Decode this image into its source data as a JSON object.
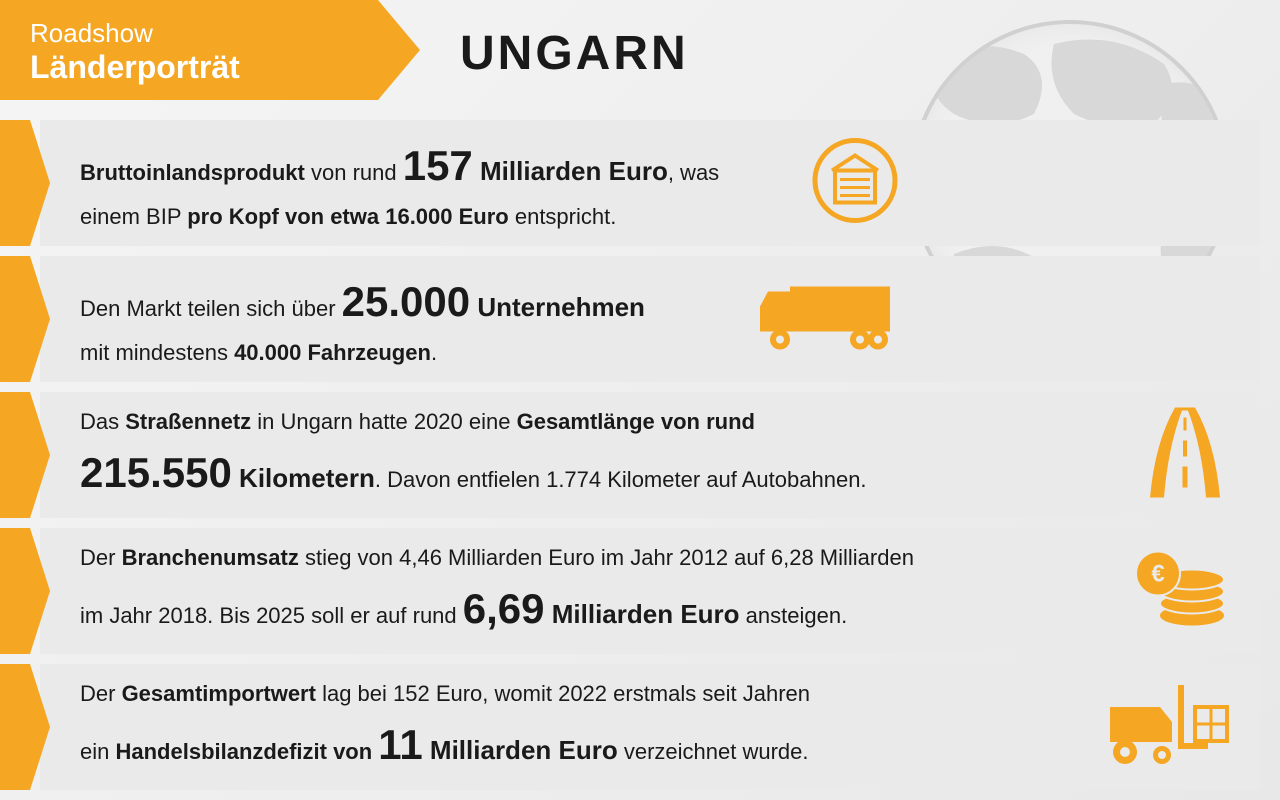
{
  "header": {
    "line1": "Roadshow",
    "line2": "Länderporträt",
    "country": "UNGARN"
  },
  "colors": {
    "accent": "#f5a623",
    "text": "#1a1a1a",
    "row_bg": "#eaeaea",
    "map_land": "#d8d8d8",
    "map_border": "#d0d0d0"
  },
  "rows": [
    {
      "icon": "warehouse",
      "parts": [
        {
          "t": "Bruttoinlandsprodukt",
          "cls": "bold"
        },
        {
          "t": " von rund "
        },
        {
          "t": "157",
          "cls": "big"
        },
        {
          "t": " Milliarden Euro",
          "cls": "mid"
        },
        {
          "t": ", was"
        },
        {
          "br": true
        },
        {
          "t": "einem BIP "
        },
        {
          "t": "pro Kopf von etwa 16.000 Euro",
          "cls": "bold"
        },
        {
          "t": " entspricht."
        }
      ]
    },
    {
      "icon": "truck",
      "parts": [
        {
          "t": "Den Markt teilen sich über "
        },
        {
          "t": "25.000",
          "cls": "big"
        },
        {
          "t": " Unternehmen",
          "cls": "mid"
        },
        {
          "br": true
        },
        {
          "t": "mit mindestens "
        },
        {
          "t": "40.000 Fahrzeugen",
          "cls": "bold"
        },
        {
          "t": "."
        }
      ]
    },
    {
      "icon": "road",
      "parts": [
        {
          "t": "Das "
        },
        {
          "t": "Straßennetz",
          "cls": "bold"
        },
        {
          "t": " in Ungarn hatte 2020 eine "
        },
        {
          "t": "Gesamtlänge von rund",
          "cls": "bold"
        },
        {
          "br": true
        },
        {
          "t": "215.550",
          "cls": "big"
        },
        {
          "t": " Kilometern",
          "cls": "mid"
        },
        {
          "t": ". Davon entfielen 1.774 Kilometer auf Autobahnen."
        }
      ]
    },
    {
      "icon": "coins",
      "parts": [
        {
          "t": "Der "
        },
        {
          "t": "Branchenumsatz",
          "cls": "bold"
        },
        {
          "t": " stieg von 4,46 Milliarden Euro im Jahr 2012 auf 6,28 Milliarden"
        },
        {
          "br": true
        },
        {
          "t": "im Jahr 2018. Bis 2025 soll er auf rund "
        },
        {
          "t": "6,69",
          "cls": "big"
        },
        {
          "t": " Milliarden Euro",
          "cls": "mid"
        },
        {
          "t": " ansteigen."
        }
      ]
    },
    {
      "icon": "forklift",
      "parts": [
        {
          "t": "Der "
        },
        {
          "t": "Gesamtimportwert",
          "cls": "bold"
        },
        {
          "t": " lag bei 152 Euro, womit 2022 erstmals seit Jahren"
        },
        {
          "br": true
        },
        {
          "t": "ein "
        },
        {
          "t": "Handelsbilanzdefizit von ",
          "cls": "bold"
        },
        {
          "t": "11",
          "cls": "big"
        },
        {
          "t": " Milliarden Euro",
          "cls": "mid"
        },
        {
          "t": " verzeichnet wurde."
        }
      ]
    }
  ]
}
